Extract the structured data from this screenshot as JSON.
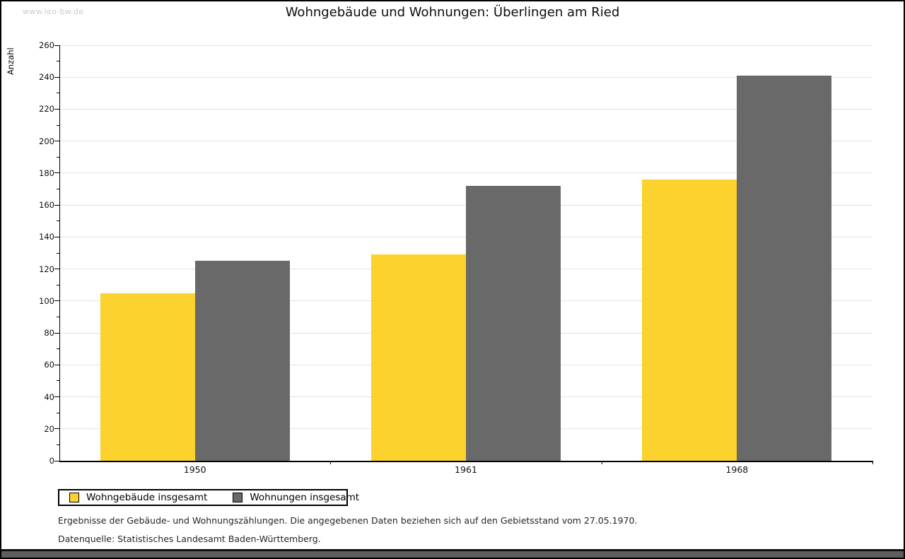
{
  "window": {
    "watermark": "www.leo-bw.de"
  },
  "title": "Wohngebäude und Wohnungen: Überlingen am Ried",
  "chart_data": {
    "type": "bar",
    "title": "Wohngebäude und Wohnungen: Überlingen am Ried",
    "xlabel": "",
    "ylabel": "Anzahl",
    "categories": [
      "1950",
      "1961",
      "1968"
    ],
    "series": [
      {
        "name": "Wohngebäude insgesamt",
        "color": "#FCD22E",
        "values": [
          105,
          129,
          176
        ]
      },
      {
        "name": "Wohnungen insgesamt",
        "color": "#696969",
        "values": [
          125,
          172,
          241
        ]
      }
    ],
    "ylim": [
      0,
      260
    ],
    "ytick_step": 20,
    "ytick_minor_step": 10,
    "grid": "horizontal-major",
    "legend_position": "bottom-left"
  },
  "footer": {
    "line1": "Ergebnisse der Gebäude- und Wohnungszählungen. Die angegebenen Daten beziehen sich auf den Gebietsstand vom 27.05.1970.",
    "line2": "Datenquelle: Statistisches Landesamt Baden-Württemberg."
  },
  "colors": {
    "gridline": "#e3e3e3",
    "axis": "#000000",
    "watermark": "#cbcbcb",
    "bottom_bar": "#5e5e5e"
  }
}
